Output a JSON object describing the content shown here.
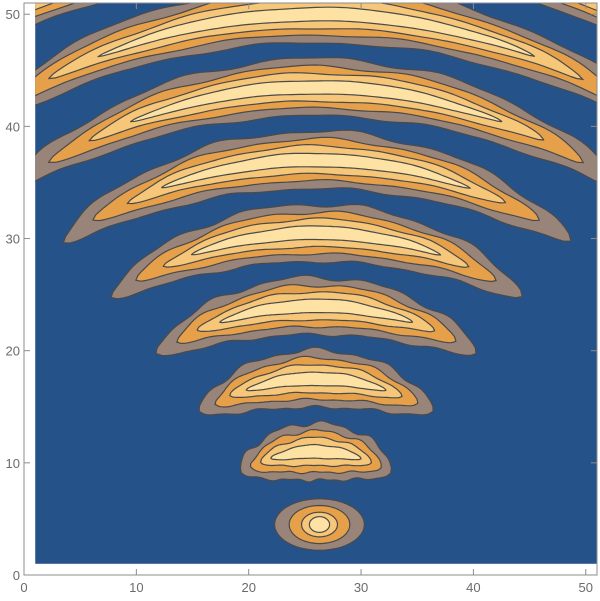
{
  "chart_data": {
    "type": "contour",
    "title": "",
    "xlabel": "",
    "ylabel": "",
    "xlim": [
      0,
      51
    ],
    "ylim": [
      0,
      51
    ],
    "data_extent": {
      "x": [
        1,
        51
      ],
      "y": [
        1,
        51
      ]
    },
    "x_ticks": [
      0,
      10,
      20,
      30,
      40,
      50
    ],
    "y_ticks": [
      0,
      10,
      20,
      30,
      40,
      50
    ],
    "x_tick_labels": [
      "0",
      "10",
      "20",
      "30",
      "40",
      "50"
    ],
    "y_tick_labels": [
      "0",
      "10",
      "20",
      "30",
      "40",
      "50"
    ],
    "center": {
      "x": 26,
      "y": -2
    },
    "ring_spacing": 6.5,
    "ring_count": 9,
    "colors": {
      "background": "#26528a",
      "levels": [
        "#26528a",
        "#988479",
        "#e7a04a",
        "#f6c679",
        "#fde2a3"
      ],
      "contour_line": "#4a4a4a"
    },
    "grid": false,
    "legend": "none"
  }
}
